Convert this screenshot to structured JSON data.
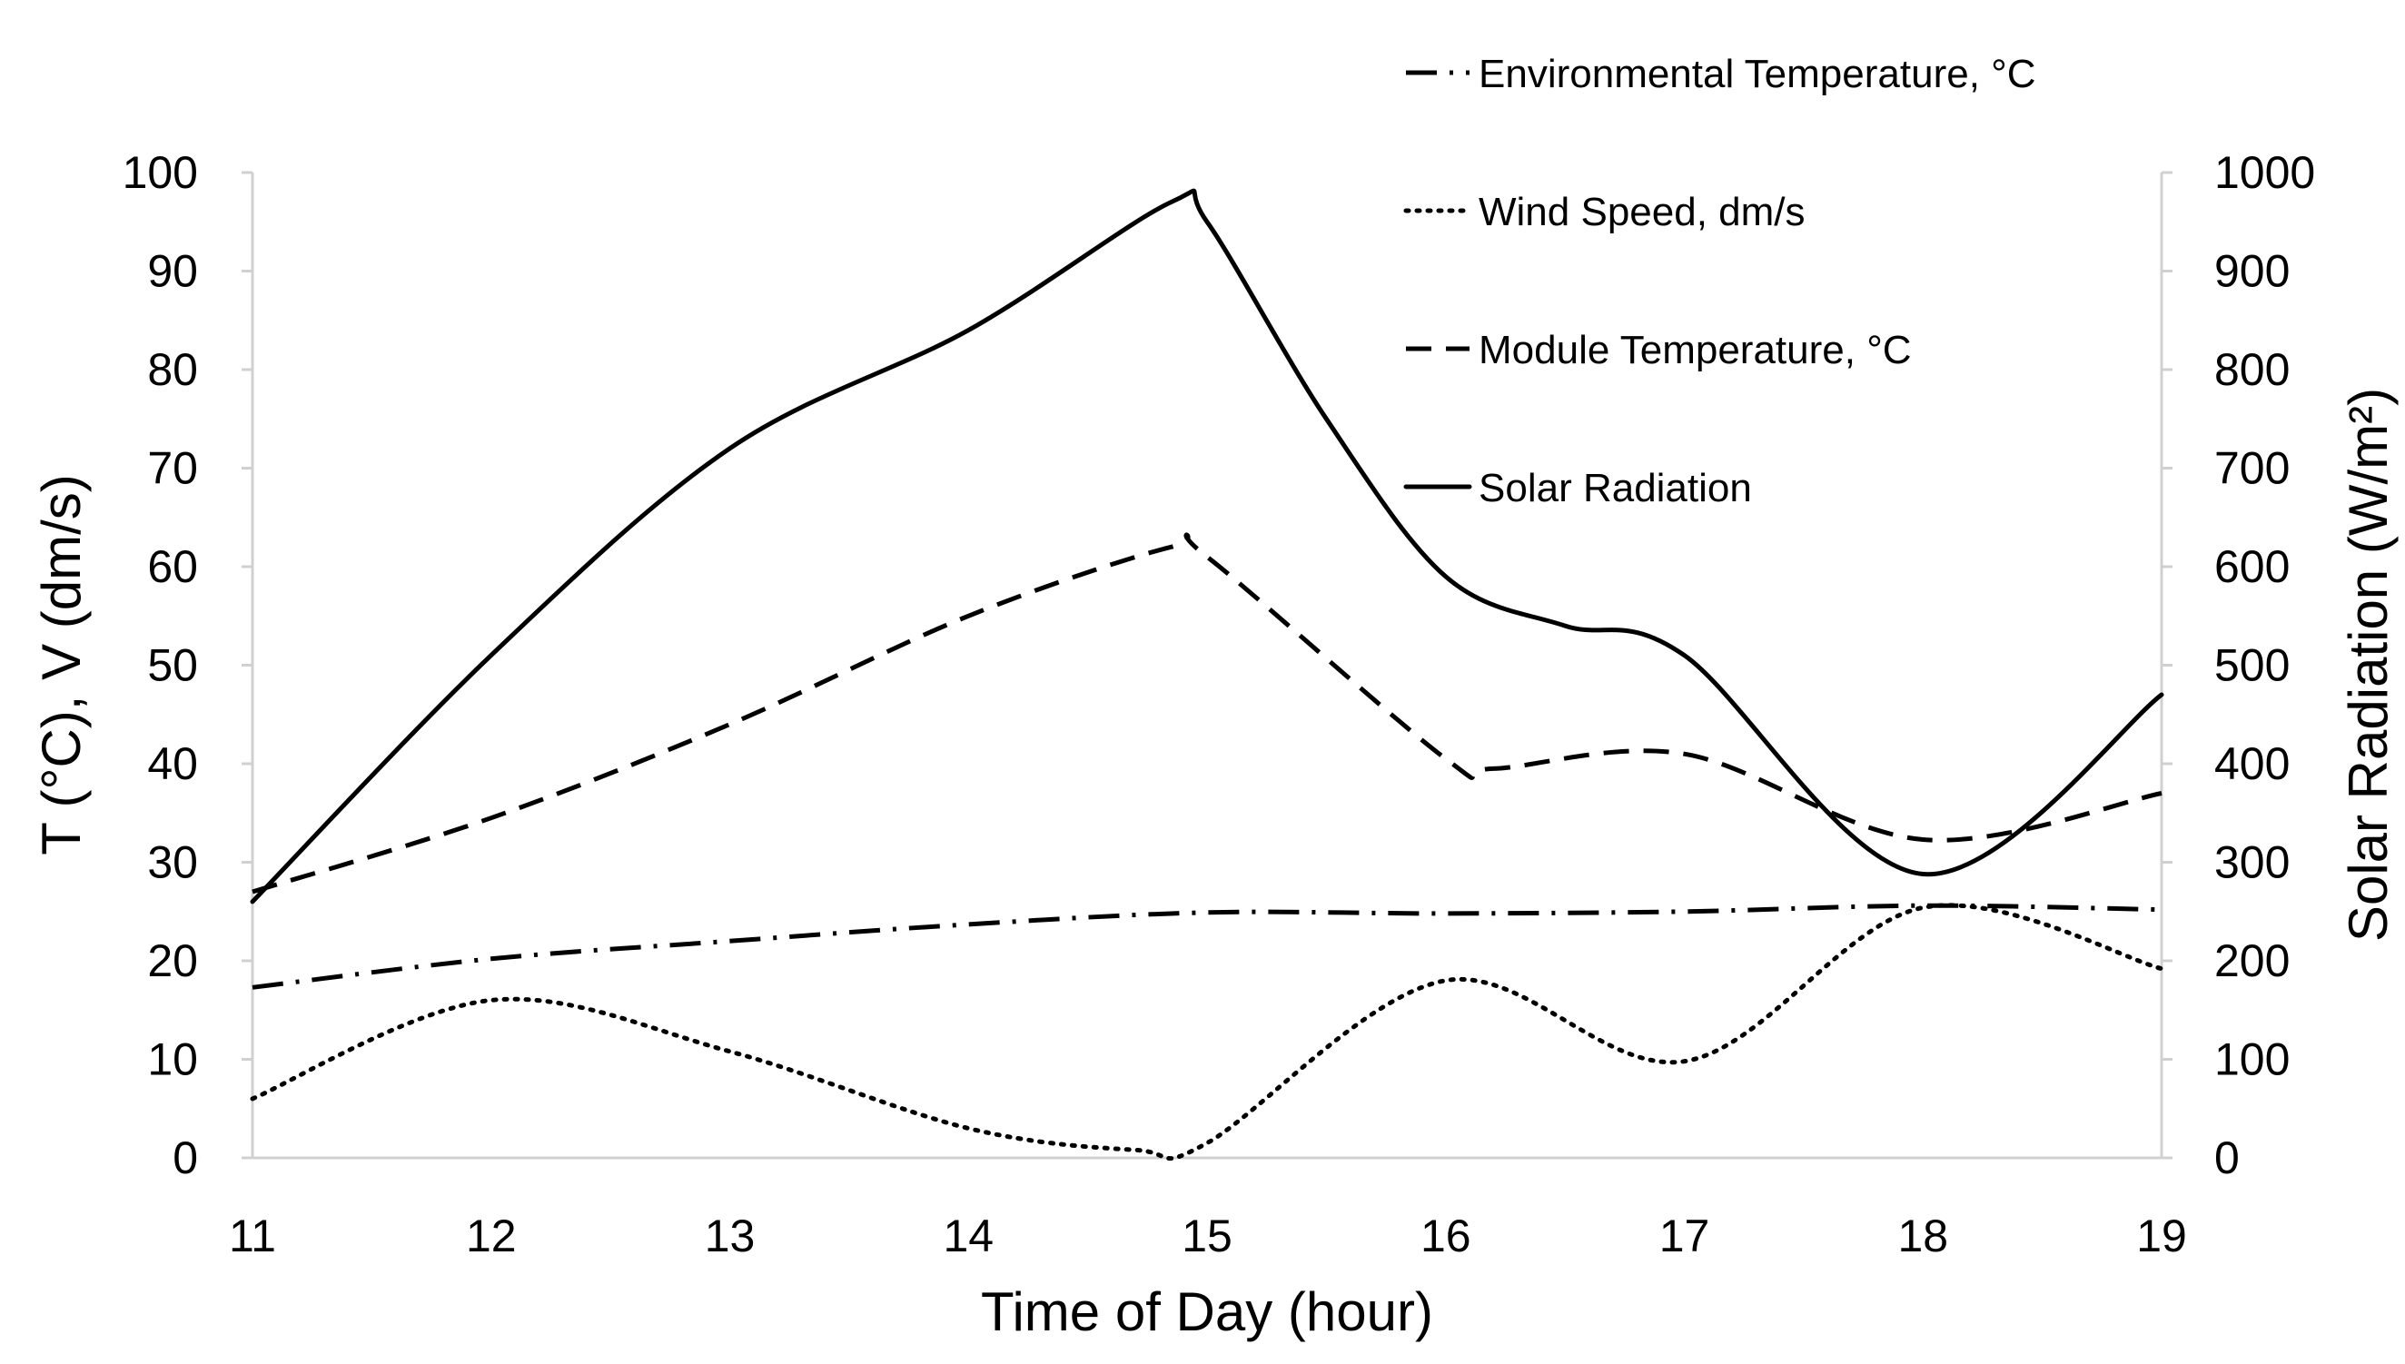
{
  "chart_data": {
    "type": "line",
    "xlabel": "Time of Day (hour)",
    "ylabel": "T (°C), V (dm/s)",
    "y2label": "Solar Radiation (W/m²)",
    "xlim": [
      11,
      19
    ],
    "ylim": [
      0,
      100
    ],
    "y2lim": [
      0,
      1000
    ],
    "xticks": [
      "11",
      "12",
      "13",
      "14",
      "15",
      "16",
      "17",
      "18",
      "19"
    ],
    "yticks": [
      "0",
      "10",
      "20",
      "30",
      "40",
      "50",
      "60",
      "70",
      "80",
      "90",
      "100"
    ],
    "y2ticks": [
      "0",
      "100",
      "200",
      "300",
      "400",
      "500",
      "600",
      "700",
      "800",
      "900",
      "1000"
    ],
    "legend_position": "top-right",
    "grid": false,
    "series": [
      {
        "name": "Environmental Temperature, °C",
        "style": "dashdot",
        "axis": "left",
        "x": [
          11,
          12,
          13,
          14,
          15,
          16,
          17,
          18,
          19
        ],
        "values": [
          17.3,
          20.2,
          22.0,
          23.7,
          24.9,
          24.8,
          25.0,
          25.6,
          25.2
        ]
      },
      {
        "name": "Wind Speed, dm/s",
        "style": "dotted",
        "axis": "left",
        "x": [
          11,
          12,
          13,
          14,
          14.7,
          15,
          16,
          17,
          18,
          19
        ],
        "values": [
          6.0,
          16.0,
          10.8,
          3.0,
          0.8,
          1.5,
          18.0,
          9.8,
          25.4,
          19.2
        ]
      },
      {
        "name": "Module Temperature, °C",
        "style": "dashed",
        "axis": "left",
        "x": [
          11,
          12,
          13,
          14,
          14.85,
          15,
          16,
          16.2,
          17,
          18,
          19
        ],
        "values": [
          27.0,
          34.5,
          44.0,
          55.0,
          62.0,
          61.0,
          40.5,
          39.5,
          41.0,
          32.3,
          37.0
        ]
      },
      {
        "name": "Solar Radiation",
        "style": "solid",
        "axis": "right",
        "x": [
          11,
          12,
          13,
          14,
          14.85,
          15,
          15.5,
          16,
          16.5,
          17,
          18,
          19
        ],
        "values": [
          260,
          510,
          720,
          840,
          970,
          950,
          750,
          590,
          540,
          510,
          288,
          470
        ]
      }
    ]
  }
}
